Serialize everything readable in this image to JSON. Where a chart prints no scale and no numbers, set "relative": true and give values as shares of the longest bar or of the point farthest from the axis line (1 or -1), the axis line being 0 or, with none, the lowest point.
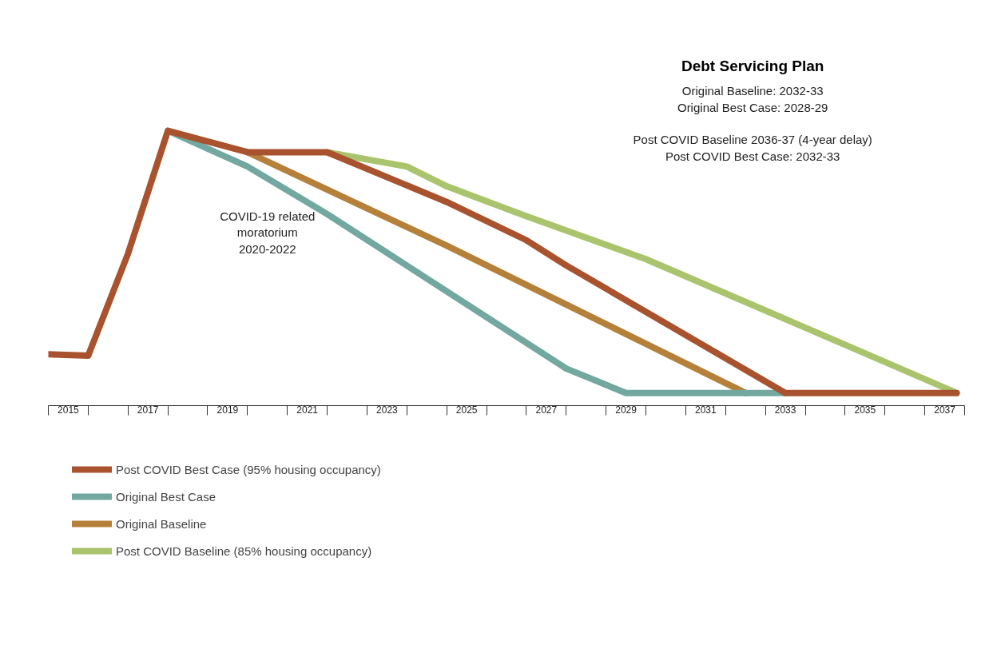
{
  "chart_data": {
    "type": "line",
    "relative": true,
    "title": "Debt Servicing Plan",
    "annotations": [
      "Original Baseline: 2032-33\nOriginal Best Case: 2028-29\n\nPost COVID Baseline 2036-37 (4-year delay)\nPost COVID Best Case: 2032-33",
      "COVID-19 related\nmoratorium\n2020-2022"
    ],
    "xlim": [
      2015,
      2038
    ],
    "xticks": [
      {
        "value": 2015,
        "label": null
      },
      {
        "value": 2016,
        "label": null
      },
      {
        "value": 2017,
        "label": null
      },
      {
        "value": 2018,
        "label": null
      },
      {
        "value": 2019,
        "label": null
      },
      {
        "value": 2020,
        "label": null
      },
      {
        "value": 2021,
        "label": null
      },
      {
        "value": 2022,
        "label": null
      },
      {
        "value": 2023,
        "label": null
      },
      {
        "value": 2024,
        "label": null
      },
      {
        "value": 2025,
        "label": null
      },
      {
        "value": 2026,
        "label": null
      },
      {
        "value": 2027,
        "label": null
      },
      {
        "value": 2028,
        "label": null
      },
      {
        "value": 2029,
        "label": null
      },
      {
        "value": 2030,
        "label": null
      },
      {
        "value": 2031,
        "label": null
      },
      {
        "value": 2032,
        "label": null
      },
      {
        "value": 2033,
        "label": null
      },
      {
        "value": 2034,
        "label": null
      },
      {
        "value": 2035,
        "label": null
      },
      {
        "value": 2036,
        "label": null
      },
      {
        "value": 2037,
        "label": null
      },
      {
        "value": 2038,
        "label": null
      },
      {
        "value": 2015.5,
        "label": "2015"
      },
      {
        "value": 2017.5,
        "label": "2017"
      },
      {
        "value": 2019.5,
        "label": "2019"
      },
      {
        "value": 2021.5,
        "label": "2021"
      },
      {
        "value": 2023.5,
        "label": "2023"
      },
      {
        "value": 2025.5,
        "label": "2025"
      },
      {
        "value": 2027.5,
        "label": "2027"
      },
      {
        "value": 2029.5,
        "label": "2029"
      },
      {
        "value": 2031.5,
        "label": "2031"
      },
      {
        "value": 2033.5,
        "label": "2033"
      },
      {
        "value": 2035.5,
        "label": "2035"
      },
      {
        "value": 2037.5,
        "label": "2037"
      }
    ],
    "grid": false,
    "legend": "bottom left",
    "series": [
      {
        "name": "Post COVID Baseline (85% housing occupancy)",
        "color": "#a9c46c",
        "x": [
          2022,
          2024,
          2025,
          2027,
          2030,
          2033,
          2036,
          2037.8
        ],
        "values": [
          0.922,
          0.87,
          0.798,
          0.689,
          0.533,
          0.346,
          0.159,
          0.046
        ]
      },
      {
        "name": "Original Baseline",
        "color": "#b5803a",
        "x": [
          2020,
          2025,
          2032.5
        ],
        "values": [
          0.922,
          0.582,
          0.046
        ]
      },
      {
        "name": "Original Best Case",
        "color": "#72a8a0",
        "x": [
          2018,
          2020,
          2022,
          2028,
          2029.5,
          2033.5
        ],
        "values": [
          1,
          0.87,
          0.697,
          0.135,
          0.046,
          0.046
        ]
      },
      {
        "name": "Post COVID Best Case (95% housing occupancy)",
        "color": "#a9532e",
        "x": [
          2015,
          2016,
          2017,
          2018,
          2020,
          2022,
          2025,
          2027,
          2028,
          2033.5,
          2037.8
        ],
        "values": [
          0.187,
          0.182,
          0.553,
          1,
          0.922,
          0.922,
          0.741,
          0.602,
          0.51,
          0.046,
          0.046
        ]
      }
    ]
  }
}
